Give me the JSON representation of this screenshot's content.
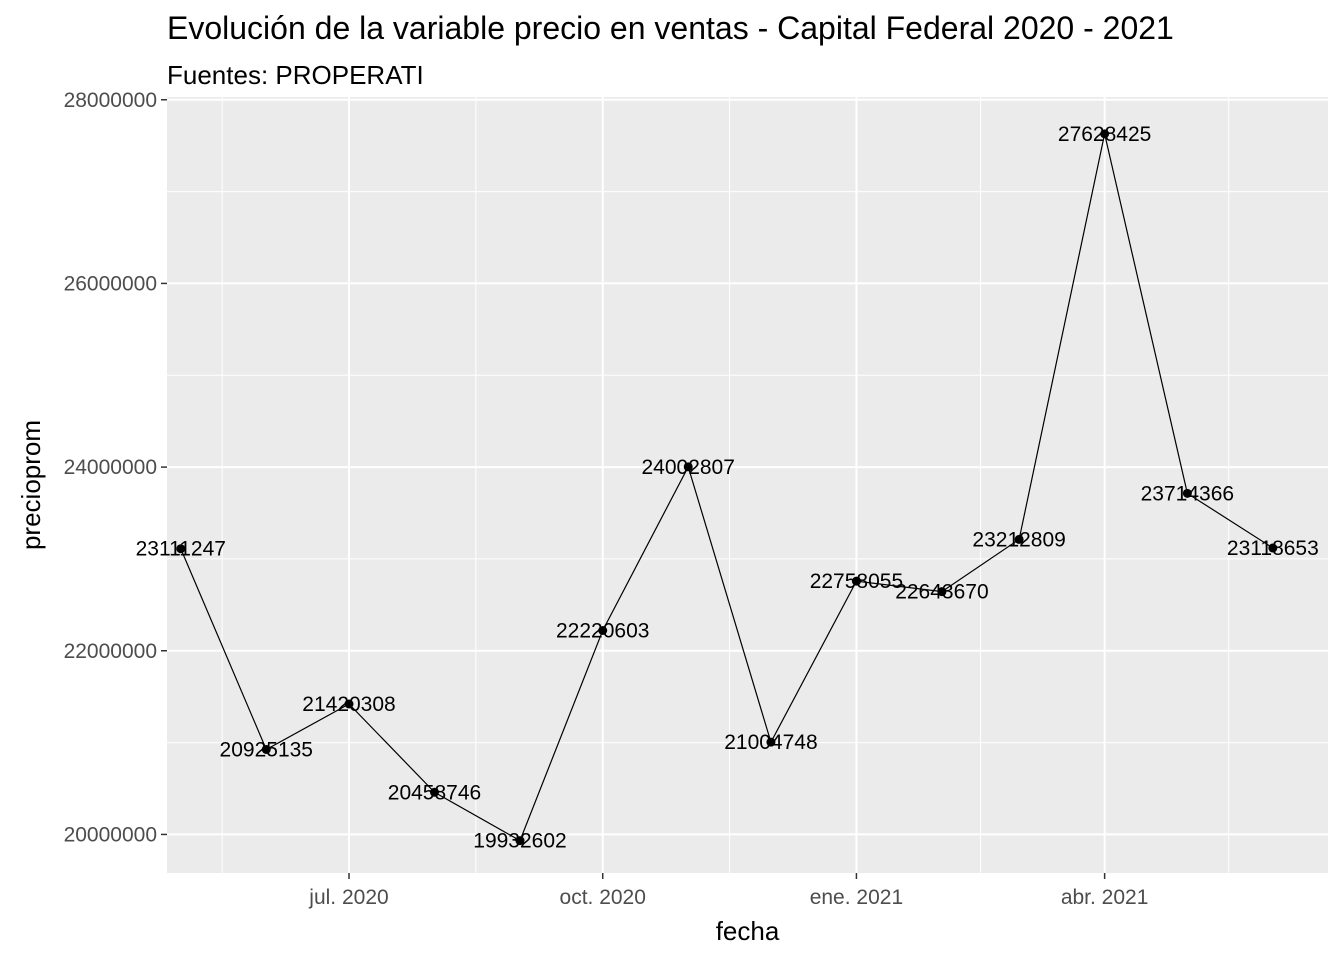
{
  "chart_data": {
    "type": "line",
    "title": "Evolución de la variable precio en ventas - Capital Federal 2020 - 2021",
    "subtitle": "Fuentes: PROPERATI",
    "xlabel": "fecha",
    "ylabel": "precioprom",
    "x_ticks": [
      {
        "date": "2020-07-01",
        "label": "jul. 2020"
      },
      {
        "date": "2020-10-01",
        "label": "oct. 2020"
      },
      {
        "date": "2021-01-01",
        "label": "ene. 2021"
      },
      {
        "date": "2021-04-01",
        "label": "abr. 2021"
      }
    ],
    "x_minor_ticks": [
      "2020-05-16",
      "2020-08-16",
      "2020-11-16",
      "2021-02-15",
      "2021-05-16"
    ],
    "y_ticks": [
      20000000,
      22000000,
      24000000,
      26000000,
      28000000
    ],
    "x_range": [
      "2020-04-26",
      "2021-06-21"
    ],
    "ylim": [
      19580000,
      28030000
    ],
    "grid": true,
    "series": [
      {
        "x": [
          "2020-05-01",
          "2020-06-01",
          "2020-07-01",
          "2020-08-01",
          "2020-09-01",
          "2020-10-01",
          "2020-11-01",
          "2020-12-01",
          "2021-01-01",
          "2021-02-01",
          "2021-03-01",
          "2021-04-01",
          "2021-05-01",
          "2021-06-01"
        ],
        "values": [
          23111247,
          20925135,
          21420308,
          20458746,
          19932602,
          22220603,
          24002807,
          21004748,
          22758055,
          22643670,
          23212809,
          27628425,
          23714366,
          23118653
        ],
        "labels": [
          "23111247",
          "20925135",
          "21420308",
          "20458746",
          "19932602",
          "22220603",
          "24002807",
          "21004748",
          "22758055",
          "22643670",
          "23212809",
          "27628425",
          "23714366",
          "23118653"
        ]
      }
    ],
    "colors": {
      "panel": "#ebebeb",
      "grid": "#ffffff",
      "line": "#000000",
      "point": "#000000",
      "tick_text": "#4d4d4d",
      "tick_mark": "#333333"
    }
  }
}
